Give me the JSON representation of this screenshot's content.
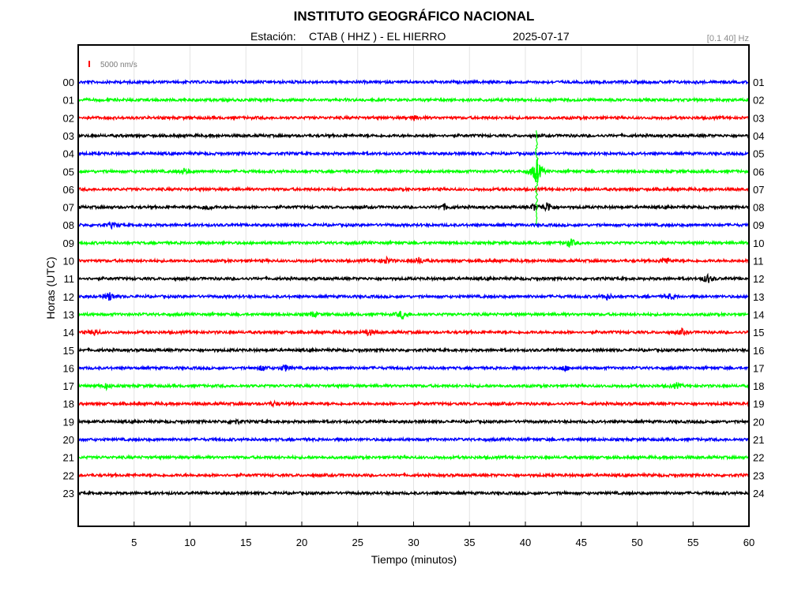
{
  "chart_data": {
    "type": "line",
    "title": "INSTITUTO GEOGRÁFICO NACIONAL",
    "station_label": "Estación:",
    "station": "CTAB ( HHZ ) - EL HIERRO",
    "date": "2025-07-17",
    "filter": "[0.1 40] Hz",
    "scale_label": "5000 nm/s",
    "xlabel": "Tiempo (minutos)",
    "ylabel": "Horas (UTC)",
    "xlim": [
      0,
      60
    ],
    "x_ticks": [
      "5",
      "10",
      "15",
      "20",
      "25",
      "30",
      "35",
      "40",
      "45",
      "50",
      "55",
      "60"
    ],
    "grid": true,
    "left_labels": [
      "00",
      "01",
      "02",
      "03",
      "04",
      "05",
      "06",
      "07",
      "08",
      "09",
      "10",
      "11",
      "12",
      "13",
      "14",
      "15",
      "16",
      "17",
      "18",
      "19",
      "20",
      "21",
      "22",
      "23"
    ],
    "right_labels": [
      "01",
      "02",
      "03",
      "04",
      "05",
      "06",
      "07",
      "08",
      "09",
      "10",
      "11",
      "12",
      "13",
      "14",
      "15",
      "16",
      "17",
      "18",
      "19",
      "20",
      "21",
      "22",
      "23",
      "24"
    ],
    "color_cycle": [
      "#0000ff",
      "#00ff00",
      "#ff0000",
      "#000000"
    ],
    "trace_rows": 24,
    "events": [
      {
        "hour": 2,
        "minute": 30,
        "amplitude": 1.2
      },
      {
        "hour": 5,
        "minute": 9.5,
        "amplitude": 1.5
      },
      {
        "hour": 5,
        "minute": 41,
        "amplitude": 8
      },
      {
        "hour": 7,
        "minute": 11.5,
        "amplitude": 1.5
      },
      {
        "hour": 7,
        "minute": 32.8,
        "amplitude": 1.5
      },
      {
        "hour": 7,
        "minute": 40.8,
        "amplitude": 1.8
      },
      {
        "hour": 7,
        "minute": 42,
        "amplitude": 3
      },
      {
        "hour": 8,
        "minute": 3,
        "amplitude": 1.2
      },
      {
        "hour": 9,
        "minute": 44,
        "amplitude": 2.5
      },
      {
        "hour": 10,
        "minute": 27.5,
        "amplitude": 2
      },
      {
        "hour": 10,
        "minute": 30.5,
        "amplitude": 1.8
      },
      {
        "hour": 10,
        "minute": 52.5,
        "amplitude": 2.5
      },
      {
        "hour": 11,
        "minute": 56.3,
        "amplitude": 2.5
      },
      {
        "hour": 12,
        "minute": 2.8,
        "amplitude": 2.5
      },
      {
        "hour": 12,
        "minute": 47.3,
        "amplitude": 1.5
      },
      {
        "hour": 12,
        "minute": 53,
        "amplitude": 1.5
      },
      {
        "hour": 13,
        "minute": 21,
        "amplitude": 1.5
      },
      {
        "hour": 13,
        "minute": 29,
        "amplitude": 2.5
      },
      {
        "hour": 14,
        "minute": 1.5,
        "amplitude": 1.5
      },
      {
        "hour": 14,
        "minute": 26,
        "amplitude": 2
      },
      {
        "hour": 14,
        "minute": 54,
        "amplitude": 1.5
      },
      {
        "hour": 16,
        "minute": 16.5,
        "amplitude": 1.5
      },
      {
        "hour": 16,
        "minute": 18.5,
        "amplitude": 1.8
      },
      {
        "hour": 16,
        "minute": 43.5,
        "amplitude": 1.5
      },
      {
        "hour": 17,
        "minute": 2.5,
        "amplitude": 1.5
      },
      {
        "hour": 17,
        "minute": 53.5,
        "amplitude": 1.5
      },
      {
        "hour": 18,
        "minute": 17.5,
        "amplitude": 1.3
      },
      {
        "hour": 19,
        "minute": 14,
        "amplitude": 1.3
      }
    ]
  }
}
